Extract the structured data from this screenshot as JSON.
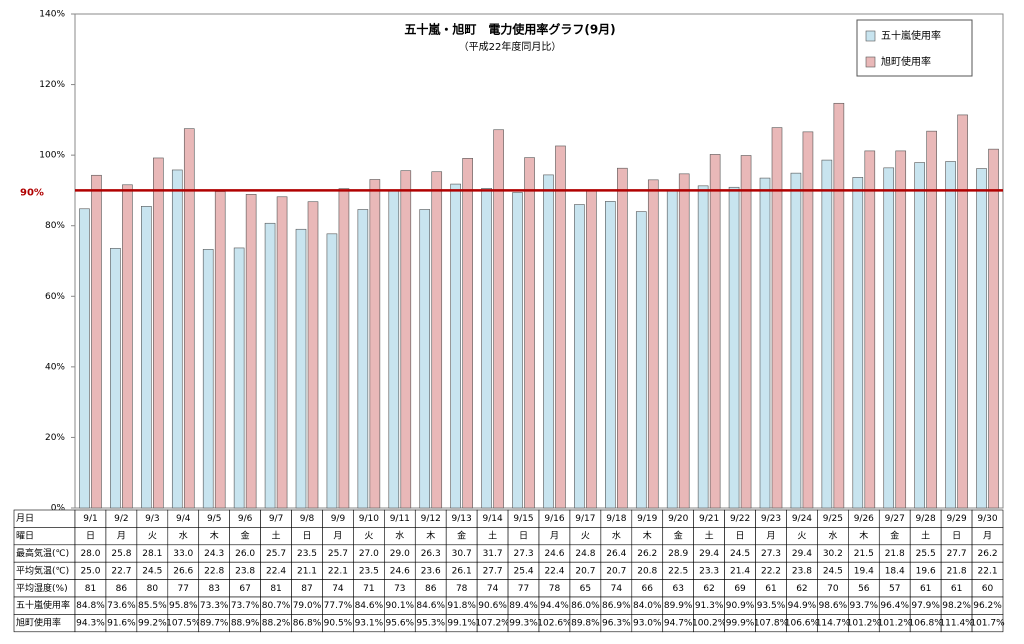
{
  "chart_data": {
    "type": "bar",
    "title": "五十嵐・旭町　電力使用率グラフ(9月)",
    "subtitle": "（平成22年度同月比）",
    "categories": [
      "9/1",
      "9/2",
      "9/3",
      "9/4",
      "9/5",
      "9/6",
      "9/7",
      "9/8",
      "9/9",
      "9/10",
      "9/11",
      "9/12",
      "9/13",
      "9/14",
      "9/15",
      "9/16",
      "9/17",
      "9/18",
      "9/19",
      "9/20",
      "9/21",
      "9/22",
      "9/23",
      "9/24",
      "9/25",
      "9/26",
      "9/27",
      "9/28",
      "9/29",
      "9/30"
    ],
    "series": [
      {
        "name": "五十嵐使用率",
        "color": "#c8e4ef",
        "values": [
          84.8,
          73.6,
          85.5,
          95.8,
          73.3,
          73.7,
          80.7,
          79.0,
          77.7,
          84.6,
          90.1,
          84.6,
          91.8,
          90.6,
          89.4,
          94.4,
          86.0,
          86.9,
          84.0,
          89.9,
          91.3,
          90.9,
          93.5,
          94.9,
          98.6,
          93.7,
          96.4,
          97.9,
          98.2,
          96.2
        ],
        "value_labels": [
          "84.8%",
          "73.6%",
          "85.5%",
          "95.8%",
          "73.3%",
          "73.7%",
          "80.7%",
          "79.0%",
          "77.7%",
          "84.6%",
          "90.1%",
          "84.6%",
          "91.8%",
          "90.6%",
          "89.4%",
          "94.4%",
          "86.0%",
          "86.9%",
          "84.0%",
          "89.9%",
          "91.3%",
          "90.9%",
          "93.5%",
          "94.9%",
          "98.6%",
          "93.7%",
          "96.4%",
          "97.9%",
          "98.2%",
          "96.2%"
        ]
      },
      {
        "name": "旭町使用率",
        "color": "#e9b8b8",
        "values": [
          94.3,
          91.6,
          99.2,
          107.5,
          89.7,
          88.9,
          88.2,
          86.8,
          90.5,
          93.1,
          95.6,
          95.3,
          99.1,
          107.2,
          99.3,
          102.6,
          89.8,
          96.3,
          93.0,
          94.7,
          100.2,
          99.9,
          107.8,
          106.6,
          114.7,
          101.2,
          101.2,
          106.8,
          111.4,
          101.7
        ],
        "value_labels": [
          "94.3%",
          "91.6%",
          "99.2%",
          "107.5%",
          "89.7%",
          "88.9%",
          "88.2%",
          "86.8%",
          "90.5%",
          "93.1%",
          "95.6%",
          "95.3%",
          "99.1%",
          "107.2%",
          "99.3%",
          "102.6%",
          "89.8%",
          "96.3%",
          "93.0%",
          "94.7%",
          "100.2%",
          "99.9%",
          "107.8%",
          "106.6%",
          "114.7%",
          "101.2%",
          "101.2%",
          "106.8%",
          "111.4%",
          "101.7%"
        ]
      }
    ],
    "ylim": [
      0,
      140
    ],
    "yticks": [
      {
        "value": 0,
        "label": "0%"
      },
      {
        "value": 20,
        "label": "20%"
      },
      {
        "value": 40,
        "label": "40%"
      },
      {
        "value": 60,
        "label": "60%"
      },
      {
        "value": 80,
        "label": "80%"
      },
      {
        "value": 100,
        "label": "100%"
      },
      {
        "value": 120,
        "label": "120%"
      },
      {
        "value": 140,
        "label": "140%"
      }
    ],
    "grid": false,
    "legend": "top-right",
    "reference_line": {
      "value": 90,
      "label": "90%",
      "color": "#b00000"
    },
    "table": {
      "date_label": "月日",
      "rows": [
        {
          "label": "曜日",
          "cells": [
            "日",
            "月",
            "火",
            "水",
            "木",
            "金",
            "土",
            "日",
            "月",
            "火",
            "水",
            "木",
            "金",
            "土",
            "日",
            "月",
            "火",
            "水",
            "木",
            "金",
            "土",
            "日",
            "月",
            "火",
            "水",
            "木",
            "金",
            "土",
            "日",
            "月"
          ]
        },
        {
          "label": "最高気温(℃)",
          "cells": [
            "28.0",
            "25.8",
            "28.1",
            "33.0",
            "24.3",
            "26.0",
            "25.7",
            "23.5",
            "25.7",
            "27.0",
            "29.0",
            "26.3",
            "30.7",
            "31.7",
            "27.3",
            "24.6",
            "24.8",
            "26.4",
            "26.2",
            "28.9",
            "29.4",
            "24.5",
            "27.3",
            "29.4",
            "30.2",
            "21.5",
            "21.8",
            "25.5",
            "27.7",
            "26.2"
          ]
        },
        {
          "label": "平均気温(℃)",
          "cells": [
            "25.0",
            "22.7",
            "24.5",
            "26.6",
            "22.8",
            "23.8",
            "22.4",
            "21.1",
            "22.1",
            "23.5",
            "24.6",
            "23.6",
            "26.1",
            "27.7",
            "25.4",
            "22.4",
            "20.7",
            "20.7",
            "20.8",
            "22.5",
            "23.3",
            "21.4",
            "22.2",
            "23.8",
            "24.5",
            "19.4",
            "18.4",
            "19.6",
            "21.8",
            "22.1"
          ]
        },
        {
          "label": "平均湿度(%)",
          "cells": [
            "81",
            "86",
            "80",
            "77",
            "83",
            "67",
            "81",
            "87",
            "74",
            "71",
            "73",
            "86",
            "78",
            "74",
            "77",
            "78",
            "65",
            "74",
            "66",
            "63",
            "62",
            "69",
            "61",
            "62",
            "70",
            "56",
            "57",
            "61",
            "61",
            "60"
          ]
        }
      ]
    }
  }
}
